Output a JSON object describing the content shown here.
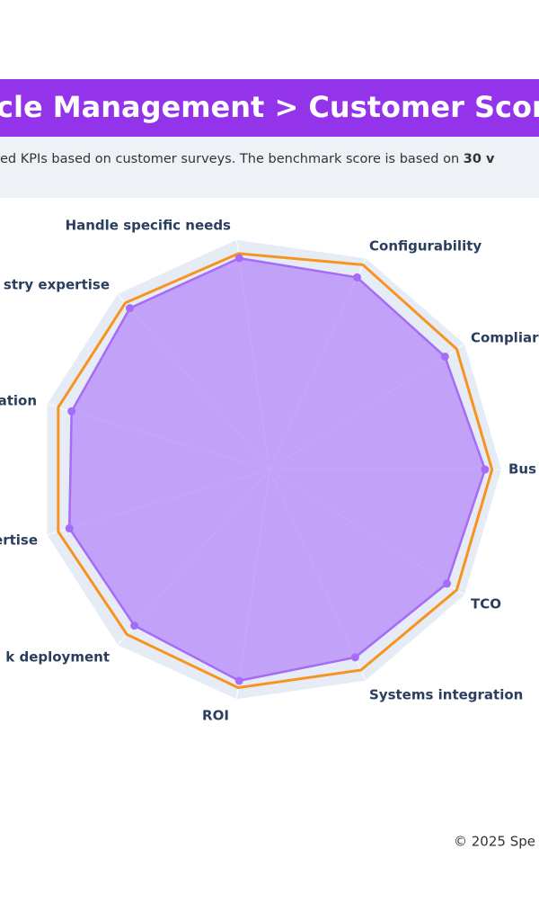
{
  "header": {
    "title": "cle Management > Customer Scor",
    "subtitle": "ed KPIs based on customer surveys. The benchmark score is based on ",
    "subtitle_bold": "30 v"
  },
  "chart_data": {
    "type": "radar",
    "categories": [
      "Bus",
      "Compliar",
      "Configurability",
      "Handle specific needs",
      "stry expertise",
      "ation",
      "ertise",
      "k deployment",
      "ROI",
      "Systems integration",
      "TCO"
    ],
    "rlim": [
      0,
      5
    ],
    "series": [
      {
        "color": "#f7931e",
        "values": [
          4.8,
          4.8,
          4.85,
          4.7,
          4.75,
          4.75,
          4.75,
          4.7,
          4.75,
          4.75,
          4.8
        ]
      },
      {
        "color": "#a66bf7",
        "values": [
          4.65,
          4.5,
          4.55,
          4.6,
          4.6,
          4.45,
          4.5,
          4.45,
          4.6,
          4.45,
          4.55
        ]
      }
    ]
  },
  "footer": {
    "text": "© 2025 Spe"
  }
}
